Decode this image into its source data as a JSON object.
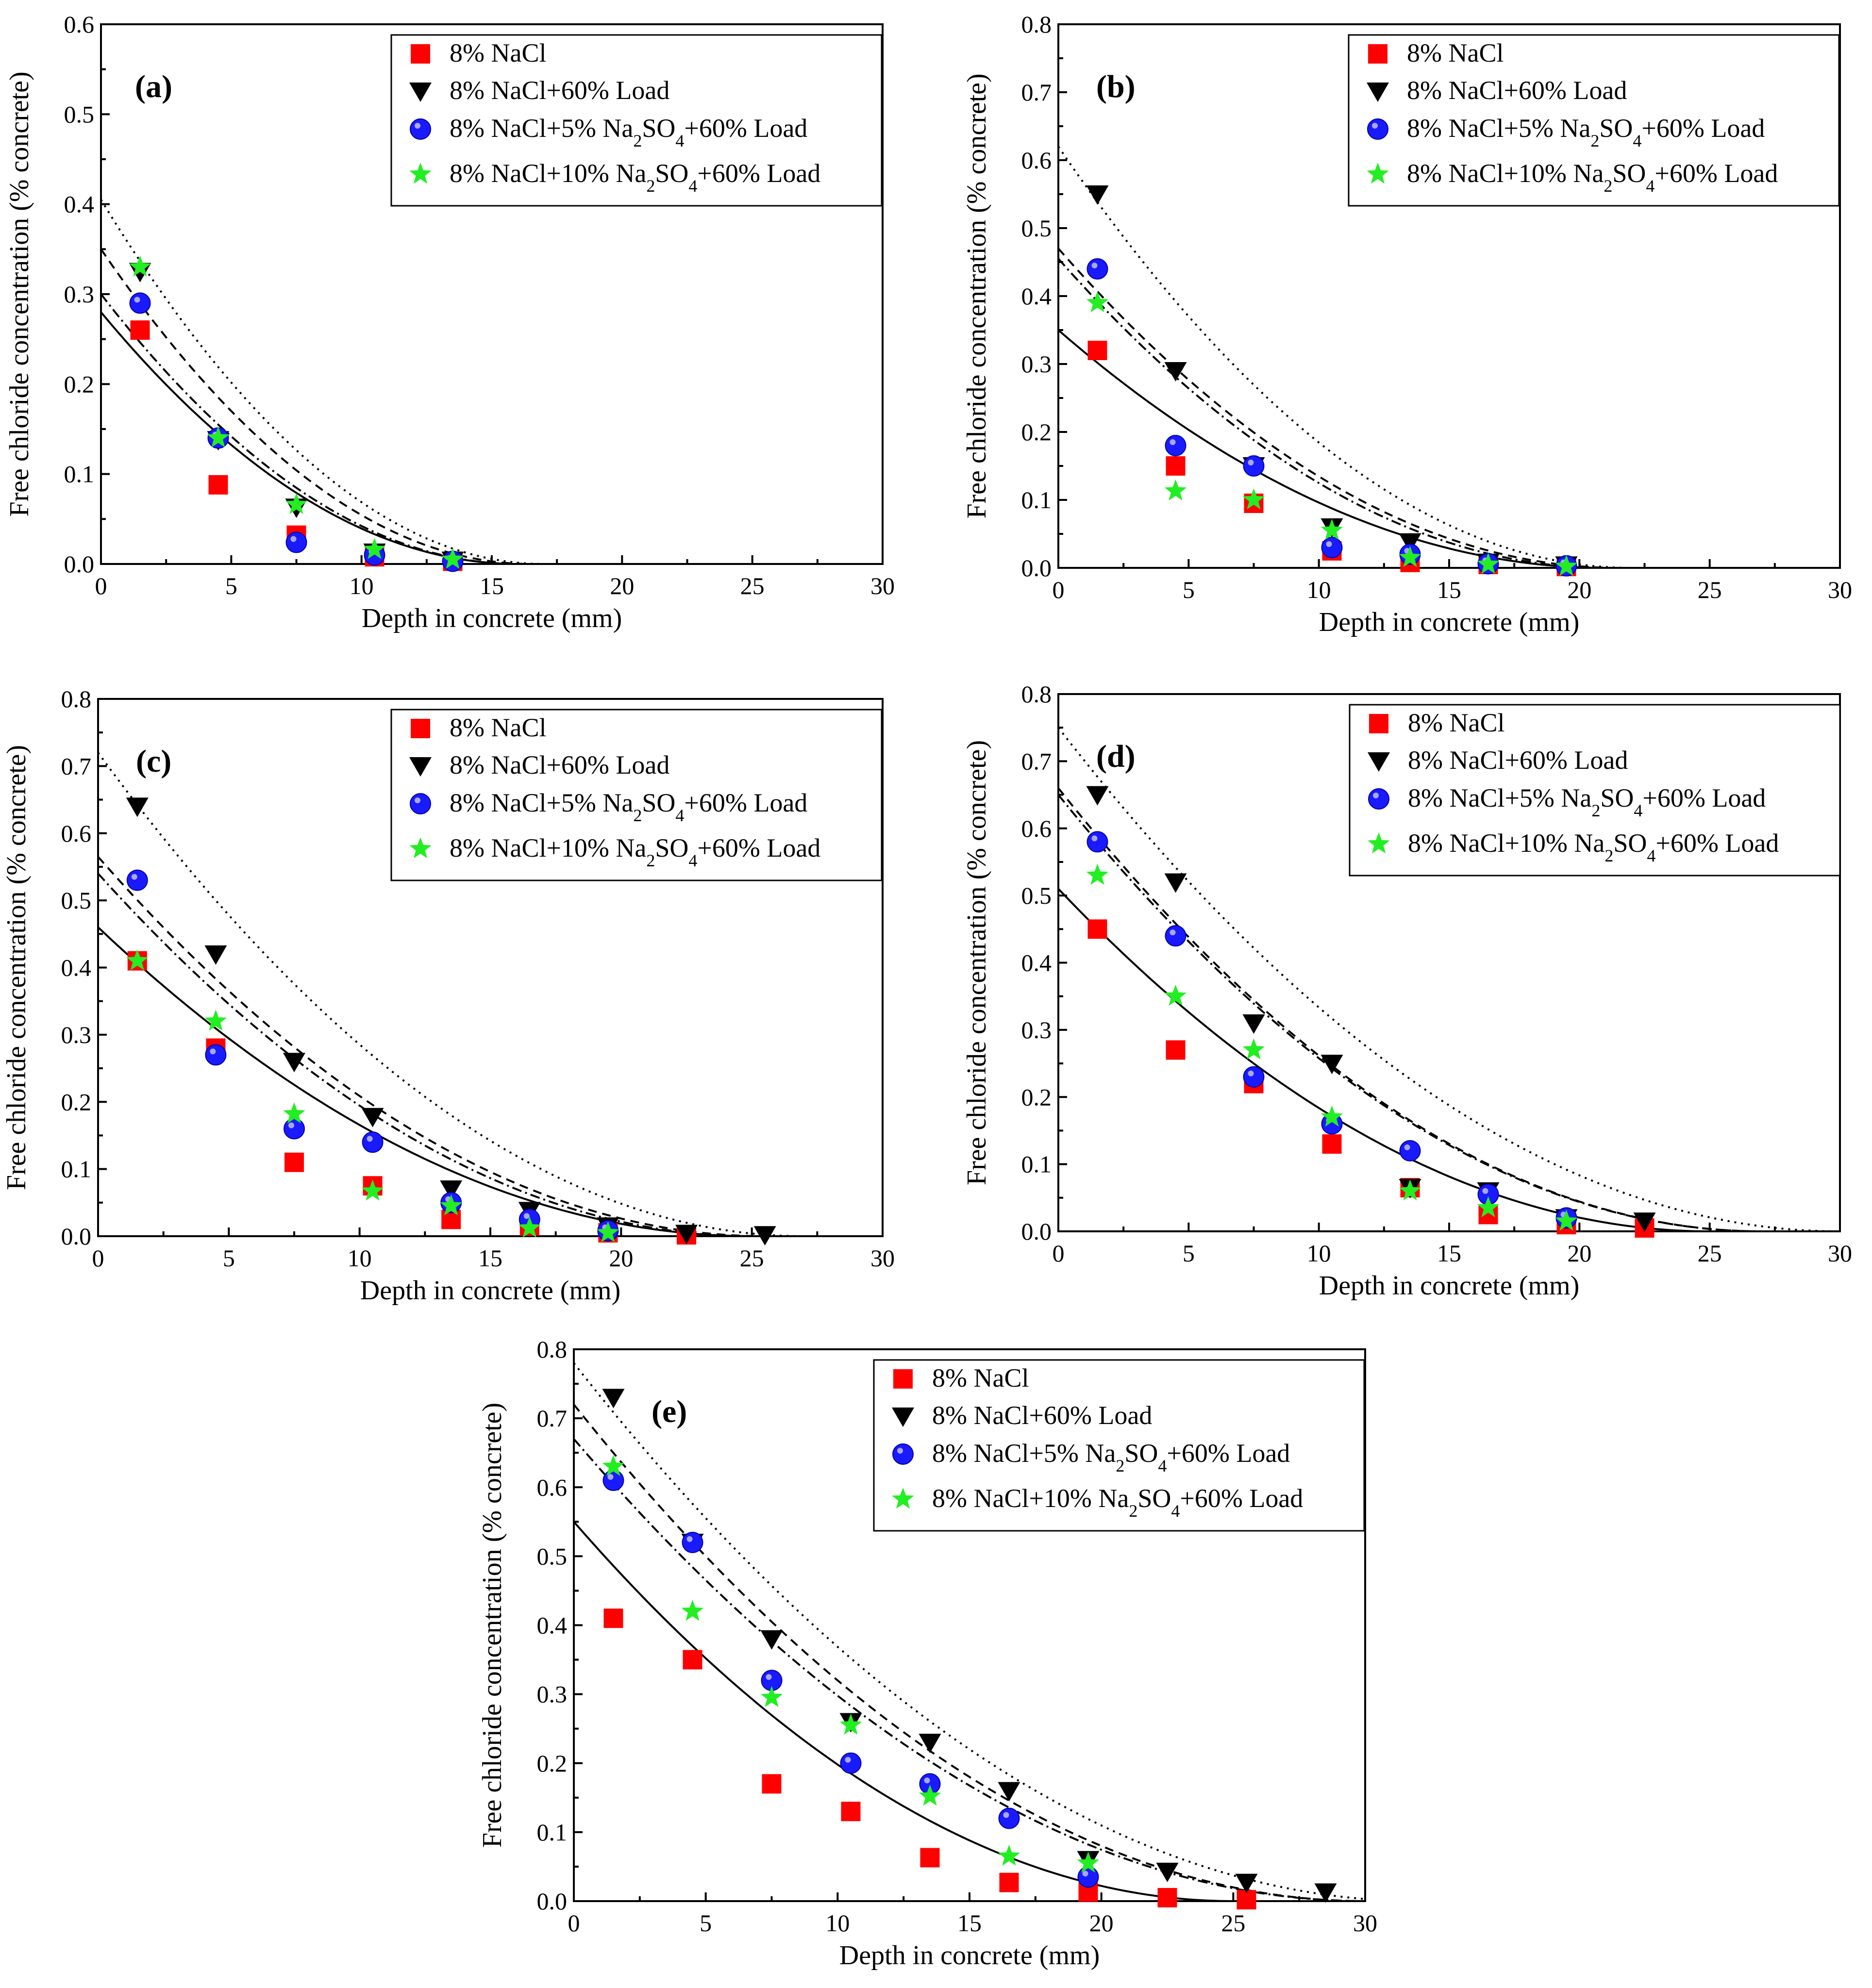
{
  "figure": {
    "x_axis_title": "Depth in concrete (mm)",
    "y_axis_title": "Free chloride concentration (% concrete)"
  },
  "series_styles": [
    {
      "name": "8% NaCl",
      "marker": "square",
      "color": "#ff0000",
      "line": "solid"
    },
    {
      "name": "8% NaCl+60% Load",
      "marker": "triangle-down",
      "color": "#000000",
      "line": "dotted"
    },
    {
      "name": "8% NaCl+5% Na2SO4+60% Load",
      "marker": "circle",
      "color": "#1a1aff",
      "line": "dashed"
    },
    {
      "name": "8% NaCl+10% Na2SO4+60% Load",
      "marker": "star",
      "color": "#22ee22",
      "line": "dashdot"
    }
  ],
  "chart_data": [
    {
      "type": "scatter",
      "panel": "(a)",
      "legend_position": "top-right",
      "xlabel": "Depth in concrete (mm)",
      "ylabel": "Free chloride concentration (% concrete)",
      "xlim": [
        0,
        30
      ],
      "ylim": [
        0,
        0.6
      ],
      "xticks": [
        0,
        5,
        10,
        15,
        20,
        25,
        30
      ],
      "yticks": [
        0.0,
        0.1,
        0.2,
        0.3,
        0.4,
        0.5,
        0.6
      ],
      "series": [
        {
          "name": "8% NaCl",
          "x": [
            1.5,
            4.5,
            7.5,
            10.5,
            13.5
          ],
          "y": [
            0.26,
            0.088,
            0.032,
            0.008,
            0.003
          ],
          "fit": {
            "surface": 0.28,
            "depth": 16
          }
        },
        {
          "name": "8% NaCl+60% Load",
          "x": [
            1.5,
            4.5,
            7.5,
            10.5,
            13.5
          ],
          "y": [
            0.325,
            0.138,
            0.063,
            0.013,
            0.004
          ],
          "fit": {
            "surface": 0.405,
            "depth": 17
          }
        },
        {
          "name": "8% NaCl+5% Na2SO4+60% Load",
          "x": [
            1.5,
            4.5,
            7.5,
            10.5,
            13.5
          ],
          "y": [
            0.29,
            0.14,
            0.024,
            0.01,
            0.003
          ],
          "fit": {
            "surface": 0.35,
            "depth": 16.5
          }
        },
        {
          "name": "8% NaCl+10% Na2SO4+60% Load",
          "x": [
            1.5,
            4.5,
            7.5,
            10.5,
            13.5
          ],
          "y": [
            0.33,
            0.14,
            0.066,
            0.016,
            0.005
          ],
          "fit": {
            "surface": 0.3,
            "depth": 16
          }
        }
      ]
    },
    {
      "type": "scatter",
      "panel": "(b)",
      "legend_position": "top-right",
      "xlabel": "Depth in concrete (mm)",
      "ylabel": "Free chloride concentration (% concrete)",
      "xlim": [
        0,
        30
      ],
      "ylim": [
        0,
        0.8
      ],
      "xticks": [
        0,
        5,
        10,
        15,
        20,
        25,
        30
      ],
      "yticks": [
        0.0,
        0.1,
        0.2,
        0.3,
        0.4,
        0.5,
        0.6,
        0.7,
        0.8
      ],
      "series": [
        {
          "name": "8% NaCl",
          "x": [
            1.5,
            4.5,
            7.5,
            10.5,
            13.5,
            16.5,
            19.5
          ],
          "y": [
            0.32,
            0.15,
            0.095,
            0.025,
            0.008,
            0.005,
            0.002
          ],
          "fit": {
            "surface": 0.35,
            "depth": 21
          }
        },
        {
          "name": "8% NaCl+60% Load",
          "x": [
            1.5,
            4.5,
            7.5,
            10.5,
            13.5,
            16.5,
            19.5
          ],
          "y": [
            0.55,
            0.29,
            0.15,
            0.06,
            0.038,
            0.008,
            0.004
          ],
          "fit": {
            "surface": 0.62,
            "depth": 22
          }
        },
        {
          "name": "8% NaCl+5% Na2SO4+60% Load",
          "x": [
            1.5,
            4.5,
            7.5,
            10.5,
            13.5,
            16.5,
            19.5
          ],
          "y": [
            0.44,
            0.18,
            0.15,
            0.03,
            0.02,
            0.006,
            0.003
          ],
          "fit": {
            "surface": 0.47,
            "depth": 21.5
          }
        },
        {
          "name": "8% NaCl+10% Na2SO4+60% Load",
          "x": [
            1.5,
            4.5,
            7.5,
            10.5,
            13.5,
            16.5,
            19.5
          ],
          "y": [
            0.39,
            0.113,
            0.1,
            0.055,
            0.015,
            0.005,
            0.002
          ],
          "fit": {
            "surface": 0.455,
            "depth": 21
          }
        }
      ]
    },
    {
      "type": "scatter",
      "panel": "(c)",
      "legend_position": "top-right",
      "xlabel": "Depth in concrete (mm)",
      "ylabel": "Free chloride concentration (% concrete)",
      "xlim": [
        0,
        30
      ],
      "ylim": [
        0,
        0.8
      ],
      "xticks": [
        0,
        5,
        10,
        15,
        20,
        25,
        30
      ],
      "yticks": [
        0.0,
        0.1,
        0.2,
        0.3,
        0.4,
        0.5,
        0.6,
        0.7,
        0.8
      ],
      "series": [
        {
          "name": "8% NaCl",
          "x": [
            1.5,
            4.5,
            7.5,
            10.5,
            13.5,
            16.5,
            19.5,
            22.5
          ],
          "y": [
            0.41,
            0.28,
            0.11,
            0.075,
            0.025,
            0.015,
            0.005,
            0.002
          ],
          "fit": {
            "surface": 0.46,
            "depth": 25
          }
        },
        {
          "name": "8% NaCl+60% Load",
          "x": [
            1.5,
            4.5,
            7.5,
            10.5,
            13.5,
            16.5,
            19.5,
            22.5,
            25.5
          ],
          "y": [
            0.64,
            0.42,
            0.26,
            0.178,
            0.07,
            0.038,
            0.015,
            0.004,
            0.002
          ],
          "fit": {
            "surface": 0.72,
            "depth": 27
          }
        },
        {
          "name": "8% NaCl+5% Na2SO4+60% Load",
          "x": [
            1.5,
            4.5,
            7.5,
            10.5,
            13.5,
            16.5,
            19.5
          ],
          "y": [
            0.53,
            0.27,
            0.16,
            0.14,
            0.05,
            0.025,
            0.008
          ],
          "fit": {
            "surface": 0.565,
            "depth": 25.5
          }
        },
        {
          "name": "8% NaCl+10% Na2SO4+60% Load",
          "x": [
            1.5,
            4.5,
            7.5,
            10.5,
            13.5,
            16.5,
            19.5
          ],
          "y": [
            0.41,
            0.32,
            0.182,
            0.067,
            0.045,
            0.012,
            0.005
          ],
          "fit": {
            "surface": 0.54,
            "depth": 25
          }
        }
      ]
    },
    {
      "type": "scatter",
      "panel": "(d)",
      "legend_position": "top-right",
      "xlabel": "Depth in concrete (mm)",
      "ylabel": "Free chloride concentration (% concrete)",
      "xlim": [
        0,
        30
      ],
      "ylim": [
        0,
        0.8
      ],
      "xticks": [
        0,
        5,
        10,
        15,
        20,
        25,
        30
      ],
      "yticks": [
        0.0,
        0.1,
        0.2,
        0.3,
        0.4,
        0.5,
        0.6,
        0.7,
        0.8
      ],
      "series": [
        {
          "name": "8% NaCl",
          "x": [
            1.5,
            4.5,
            7.5,
            10.5,
            13.5,
            16.5,
            19.5,
            22.5
          ],
          "y": [
            0.45,
            0.27,
            0.22,
            0.13,
            0.065,
            0.025,
            0.01,
            0.005
          ],
          "fit": {
            "surface": 0.51,
            "depth": 25
          }
        },
        {
          "name": "8% NaCl+60% Load",
          "x": [
            1.5,
            4.5,
            7.5,
            10.5,
            13.5,
            16.5,
            19.5,
            22.5
          ],
          "y": [
            0.65,
            0.52,
            0.31,
            0.25,
            0.065,
            0.06,
            0.02,
            0.015
          ],
          "fit": {
            "surface": 0.75,
            "depth": 30
          }
        },
        {
          "name": "8% NaCl+5% Na2SO4+60% Load",
          "x": [
            1.5,
            4.5,
            7.5,
            10.5,
            13.5,
            16.5,
            19.5
          ],
          "y": [
            0.58,
            0.44,
            0.23,
            0.16,
            0.12,
            0.055,
            0.02
          ],
          "fit": {
            "surface": 0.66,
            "depth": 27
          }
        },
        {
          "name": "8% NaCl+10% Na2SO4+60% Load",
          "x": [
            1.5,
            4.5,
            7.5,
            10.5,
            13.5,
            16.5,
            19.5
          ],
          "y": [
            0.53,
            0.35,
            0.27,
            0.17,
            0.06,
            0.035,
            0.015
          ],
          "fit": {
            "surface": 0.65,
            "depth": 27
          }
        }
      ]
    },
    {
      "type": "scatter",
      "panel": "(e)",
      "legend_position": "top-right",
      "xlabel": "Depth in concrete (mm)",
      "ylabel": "Free chloride concentration (% concrete)",
      "xlim": [
        0,
        30
      ],
      "ylim": [
        0,
        0.8
      ],
      "xticks": [
        0,
        5,
        10,
        15,
        20,
        25,
        30
      ],
      "yticks": [
        0.0,
        0.1,
        0.2,
        0.3,
        0.4,
        0.5,
        0.6,
        0.7,
        0.8
      ],
      "series": [
        {
          "name": "8% NaCl",
          "x": [
            1.5,
            4.5,
            7.5,
            10.5,
            13.5,
            16.5,
            19.5,
            22.5,
            25.5
          ],
          "y": [
            0.41,
            0.35,
            0.17,
            0.13,
            0.063,
            0.027,
            0.013,
            0.005,
            0.002
          ],
          "fit": {
            "surface": 0.55,
            "depth": 25
          }
        },
        {
          "name": "8% NaCl+60% Load",
          "x": [
            1.5,
            4.5,
            7.5,
            10.5,
            13.5,
            16.5,
            19.5,
            22.5,
            25.5,
            28.5
          ],
          "y": [
            0.73,
            0.52,
            0.38,
            0.26,
            0.23,
            0.16,
            0.06,
            0.043,
            0.027,
            0.013
          ],
          "fit": {
            "surface": 0.78,
            "depth": 32
          }
        },
        {
          "name": "8% NaCl+5% Na2SO4+60% Load",
          "x": [
            1.5,
            4.5,
            7.5,
            10.5,
            13.5,
            16.5,
            19.5
          ],
          "y": [
            0.61,
            0.52,
            0.32,
            0.2,
            0.17,
            0.12,
            0.035
          ],
          "fit": {
            "surface": 0.72,
            "depth": 30
          }
        },
        {
          "name": "8% NaCl+10% Na2SO4+60% Load",
          "x": [
            1.5,
            4.5,
            7.5,
            10.5,
            13.5,
            16.5,
            19.5
          ],
          "y": [
            0.63,
            0.42,
            0.295,
            0.255,
            0.152,
            0.065,
            0.055
          ],
          "fit": {
            "surface": 0.67,
            "depth": 30
          }
        }
      ]
    }
  ]
}
